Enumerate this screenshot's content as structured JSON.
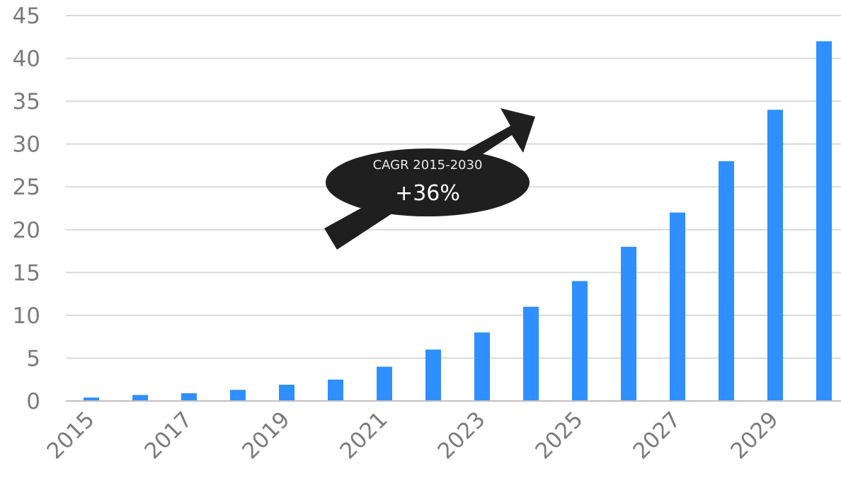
{
  "chart_data": {
    "type": "bar",
    "title": "",
    "xlabel": "",
    "ylabel": "",
    "categories": [
      "2015",
      "2016",
      "2017",
      "2018",
      "2019",
      "2020",
      "2021",
      "2022",
      "2023",
      "2024",
      "2025",
      "2026",
      "2027",
      "2028",
      "2029",
      "2030"
    ],
    "x_tick_labels": [
      "2015",
      "2017",
      "2019",
      "2021",
      "2023",
      "2025",
      "2027",
      "2029"
    ],
    "series": [
      {
        "values": [
          0.4,
          0.7,
          0.9,
          1.3,
          1.9,
          2.5,
          4,
          6,
          8,
          11,
          14,
          18,
          22,
          28,
          34,
          42
        ]
      }
    ],
    "ylim": [
      0,
      45
    ],
    "y_ticks": [
      0,
      5,
      10,
      15,
      20,
      25,
      30,
      35,
      40,
      45
    ],
    "grid": true,
    "legend": "none",
    "colors": {
      "bar": "#2f8fff",
      "grid": "#d9d9d9",
      "axis": "#bfbfbf",
      "tick_text": "#7b7b7b",
      "annotation": "#1f1f1f"
    },
    "annotation": {
      "title": "CAGR 2015-2030",
      "value": "+36%"
    }
  }
}
